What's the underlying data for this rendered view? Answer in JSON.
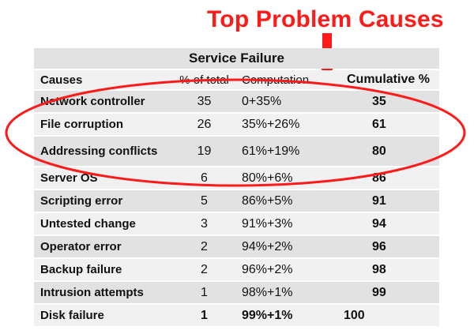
{
  "headline": "Top Problem Causes",
  "table": {
    "title": "Service Failure",
    "headers": {
      "cause": "Causes",
      "percent": "% of total",
      "computation": "Computation",
      "cumulative": "Cumulative %"
    },
    "rows": [
      {
        "cause": "Network controller",
        "percent": "35",
        "computation": "0+35%",
        "cumulative": "35"
      },
      {
        "cause": "File corruption",
        "percent": "26",
        "computation": "35%+26%",
        "cumulative": "61"
      },
      {
        "cause": "Addressing conflicts",
        "percent": "19",
        "computation": "61%+19%",
        "cumulative": "80"
      },
      {
        "cause": "Server OS",
        "percent": "6",
        "computation": "80%+6%",
        "cumulative": "86"
      },
      {
        "cause": "Scripting error",
        "percent": "5",
        "computation": "86%+5%",
        "cumulative": "91"
      },
      {
        "cause": "Untested change",
        "percent": "3",
        "computation": "91%+3%",
        "cumulative": "94"
      },
      {
        "cause": "Operator error",
        "percent": "2",
        "computation": "94%+2%",
        "cumulative": "96"
      },
      {
        "cause": "Backup failure",
        "percent": "2",
        "computation": "96%+2%",
        "cumulative": "98"
      },
      {
        "cause": "Intrusion attempts",
        "percent": "1",
        "computation": "98%+1%",
        "cumulative": "99"
      },
      {
        "cause": "Disk failure",
        "percent": "1",
        "computation": "99%+1%",
        "cumulative": "100"
      }
    ]
  },
  "colors": {
    "accent_red": "#ff1a1a",
    "row_shade_dark": "#e2e2e2",
    "row_shade_light": "#f1f1f1"
  }
}
